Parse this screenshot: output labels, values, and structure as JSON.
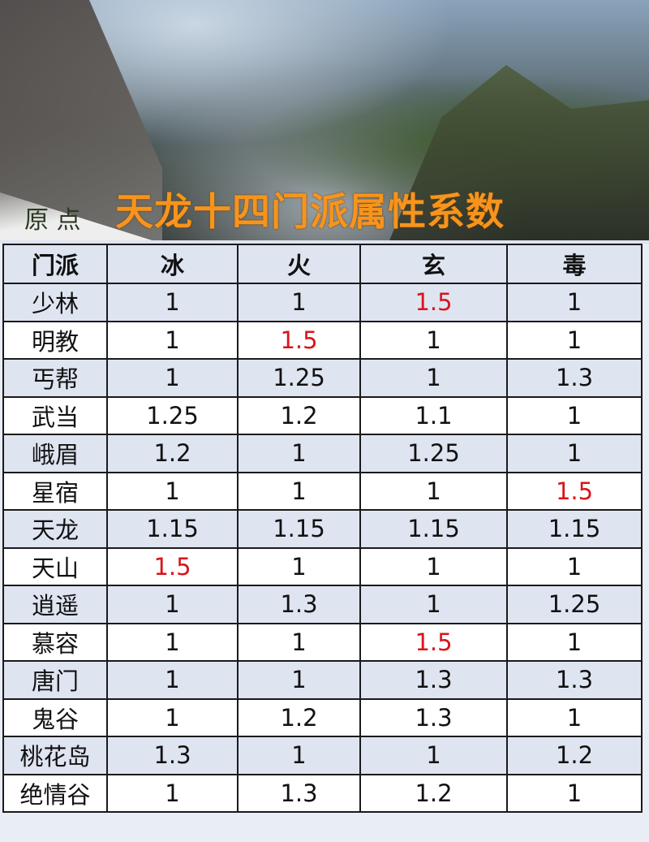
{
  "banner": {
    "title": "天龙十四门派属性系数",
    "logo_text": "原点",
    "title_color": "#f7941d"
  },
  "table": {
    "headers": [
      "门派",
      "冰",
      "火",
      "玄",
      "毒"
    ],
    "highlight_color": "#d9141b",
    "rows": [
      {
        "sect": "少林",
        "values": [
          "1",
          "1",
          "1.5",
          "1"
        ],
        "highlight": [
          false,
          false,
          true,
          false
        ]
      },
      {
        "sect": "明教",
        "values": [
          "1",
          "1.5",
          "1",
          "1"
        ],
        "highlight": [
          false,
          true,
          false,
          false
        ]
      },
      {
        "sect": "丐帮",
        "values": [
          "1",
          "1.25",
          "1",
          "1.3"
        ],
        "highlight": [
          false,
          false,
          false,
          false
        ]
      },
      {
        "sect": "武当",
        "values": [
          "1.25",
          "1.2",
          "1.1",
          "1"
        ],
        "highlight": [
          false,
          false,
          false,
          false
        ]
      },
      {
        "sect": "峨眉",
        "values": [
          "1.2",
          "1",
          "1.25",
          "1"
        ],
        "highlight": [
          false,
          false,
          false,
          false
        ]
      },
      {
        "sect": "星宿",
        "values": [
          "1",
          "1",
          "1",
          "1.5"
        ],
        "highlight": [
          false,
          false,
          false,
          true
        ]
      },
      {
        "sect": "天龙",
        "values": [
          "1.15",
          "1.15",
          "1.15",
          "1.15"
        ],
        "highlight": [
          false,
          false,
          false,
          false
        ]
      },
      {
        "sect": "天山",
        "values": [
          "1.5",
          "1",
          "1",
          "1"
        ],
        "highlight": [
          true,
          false,
          false,
          false
        ]
      },
      {
        "sect": "逍遥",
        "values": [
          "1",
          "1.3",
          "1",
          "1.25"
        ],
        "highlight": [
          false,
          false,
          false,
          false
        ]
      },
      {
        "sect": "慕容",
        "values": [
          "1",
          "1",
          "1.5",
          "1"
        ],
        "highlight": [
          false,
          false,
          true,
          false
        ]
      },
      {
        "sect": "唐门",
        "values": [
          "1",
          "1",
          "1.3",
          "1.3"
        ],
        "highlight": [
          false,
          false,
          false,
          false
        ]
      },
      {
        "sect": "鬼谷",
        "values": [
          "1",
          "1.2",
          "1.3",
          "1"
        ],
        "highlight": [
          false,
          false,
          false,
          false
        ]
      },
      {
        "sect": "桃花岛",
        "values": [
          "1.3",
          "1",
          "1",
          "1.2"
        ],
        "highlight": [
          false,
          false,
          false,
          false
        ]
      },
      {
        "sect": "绝情谷",
        "values": [
          "1",
          "1.3",
          "1.2",
          "1"
        ],
        "highlight": [
          false,
          false,
          false,
          false
        ]
      }
    ]
  }
}
